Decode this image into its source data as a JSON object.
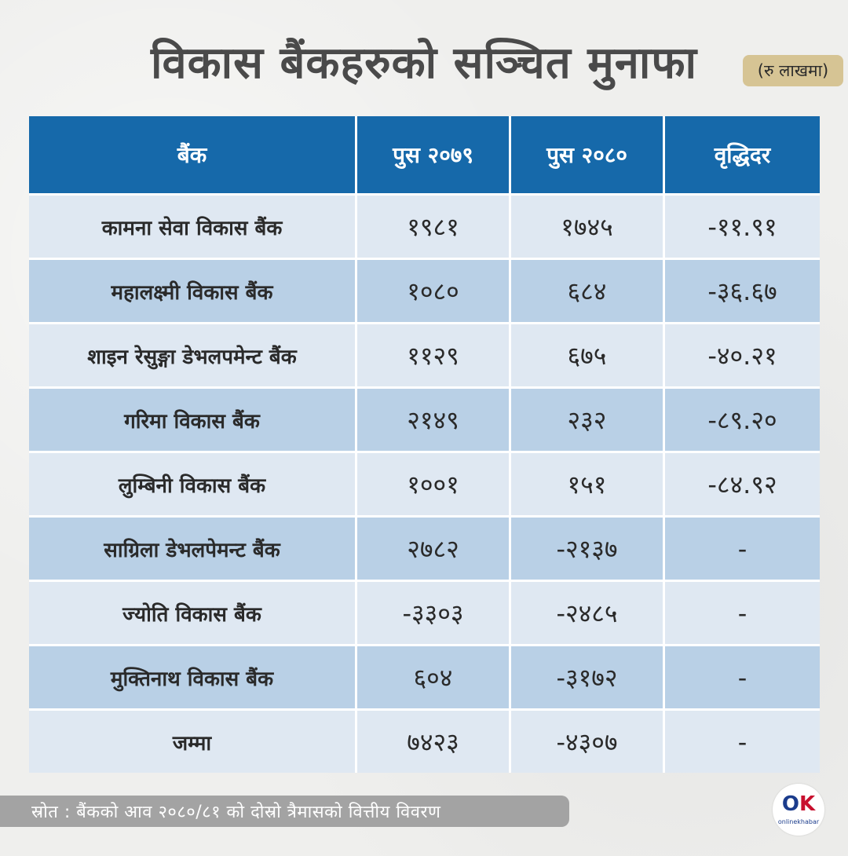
{
  "title": "विकास बैंकहरुको सञ्चित मुनाफा",
  "unit": "(रु लाखमा)",
  "table": {
    "headers": [
      "बैंक",
      "पुस २०७९",
      "पुस २०८०",
      "वृद्धिदर"
    ],
    "rows": [
      [
        "कामना सेवा विकास बैंक",
        "१९८१",
        "१७४५",
        "-११.९१"
      ],
      [
        "महालक्ष्मी विकास बैंक",
        "१०८०",
        "६८४",
        "-३६.६७"
      ],
      [
        "शाइन रेसुङ्गा डेभलपमेन्ट बैंक",
        "११२९",
        "६७५",
        "-४०.२१"
      ],
      [
        "गरिमा विकास बैंक",
        "२१४९",
        "२३२",
        "-८९.२०"
      ],
      [
        "लुम्बिनी विकास बैंक",
        "१००१",
        "१५१",
        "-८४.९२"
      ],
      [
        "साग्रिला डेभलपेमन्ट बैंक",
        "२७८२",
        "-२१३७",
        "-"
      ],
      [
        "ज्योति विकास बैंक",
        "-३३०३",
        "-२४८५",
        "-"
      ],
      [
        "मुक्तिनाथ विकास बैंक",
        "६०४",
        "-३१७२",
        "-"
      ],
      [
        "जम्मा",
        "७४२३",
        "-४३०७",
        "-"
      ]
    ]
  },
  "footer": "स्रोत : बैंकको आव २०८०/८१ को दोस्रो त्रैमासको वित्तीय विवरण",
  "logo": {
    "mark_o": "O",
    "mark_k": "K",
    "text": "onlinekhabar"
  },
  "colors": {
    "header_bg": "#1669aa",
    "row_light": "#dfe8f2",
    "row_dark": "#b9d0e6",
    "unit_badge": "#d6c494",
    "footer_bg": "#a3a3a3"
  }
}
